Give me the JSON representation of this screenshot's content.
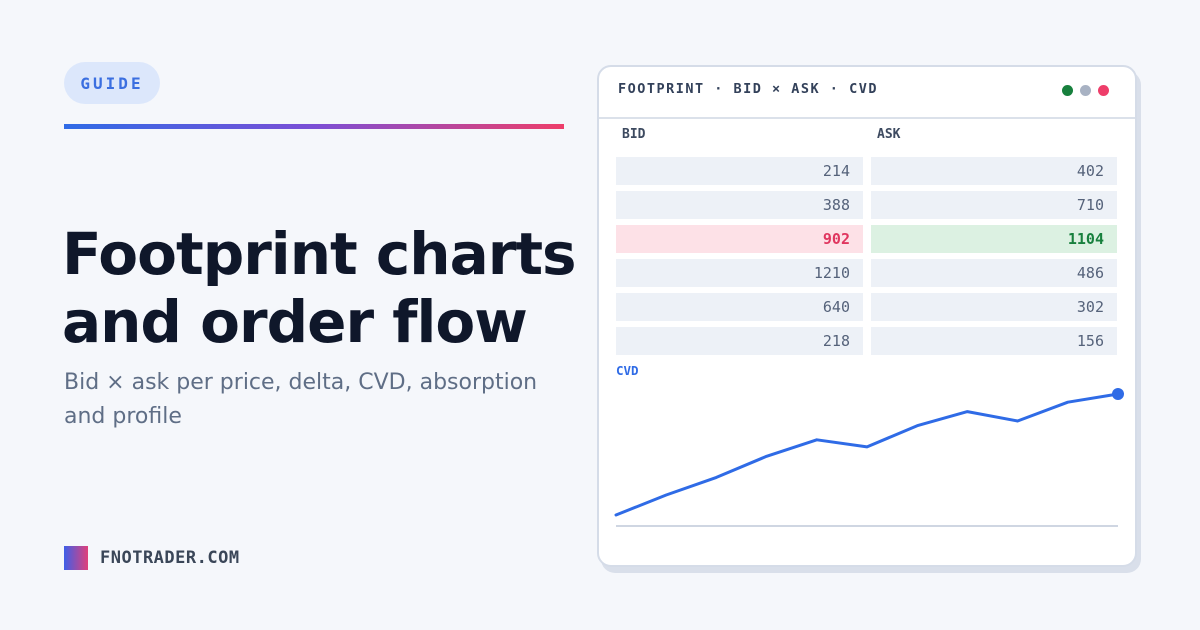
{
  "badge": "GUIDE",
  "title_lines": [
    "Footprint charts",
    "and order flow"
  ],
  "subtitle": "Bid × ask per price, delta, CVD, absorption and profile",
  "brand": "FNOTRADER.COM",
  "colors": {
    "accent_blue": "#2f6be6",
    "accent_pink": "#ee3e6a",
    "bid_highlight": "#e0365f",
    "ask_highlight": "#17803d",
    "dot_green": "#17803d",
    "dot_gray": "#a8b2c3",
    "dot_pink": "#ee3e6a"
  },
  "panel": {
    "title": "FOOTPRINT · BID × ASK · CVD",
    "bid_label": "BID",
    "ask_label": "ASK",
    "rows": [
      {
        "bid": "214",
        "ask": "402"
      },
      {
        "bid": "388",
        "ask": "710"
      },
      {
        "bid": "902",
        "ask": "1104",
        "highlight": true
      },
      {
        "bid": "1210",
        "ask": "486"
      },
      {
        "bid": "640",
        "ask": "302"
      },
      {
        "bid": "218",
        "ask": "156"
      }
    ],
    "cvd_label": "CVD"
  },
  "chart_data": {
    "type": "line",
    "title": "CVD",
    "xlabel": "",
    "ylabel": "",
    "x": [
      0,
      1,
      2,
      3,
      4,
      5,
      6,
      7,
      8,
      9,
      10
    ],
    "series": [
      {
        "values": [
          0,
          17,
          32,
          50,
          64,
          58,
          76,
          88,
          80,
          96,
          103
        ]
      }
    ],
    "ylim": [
      0,
      103
    ],
    "grid": false,
    "last_point_marker": true
  }
}
